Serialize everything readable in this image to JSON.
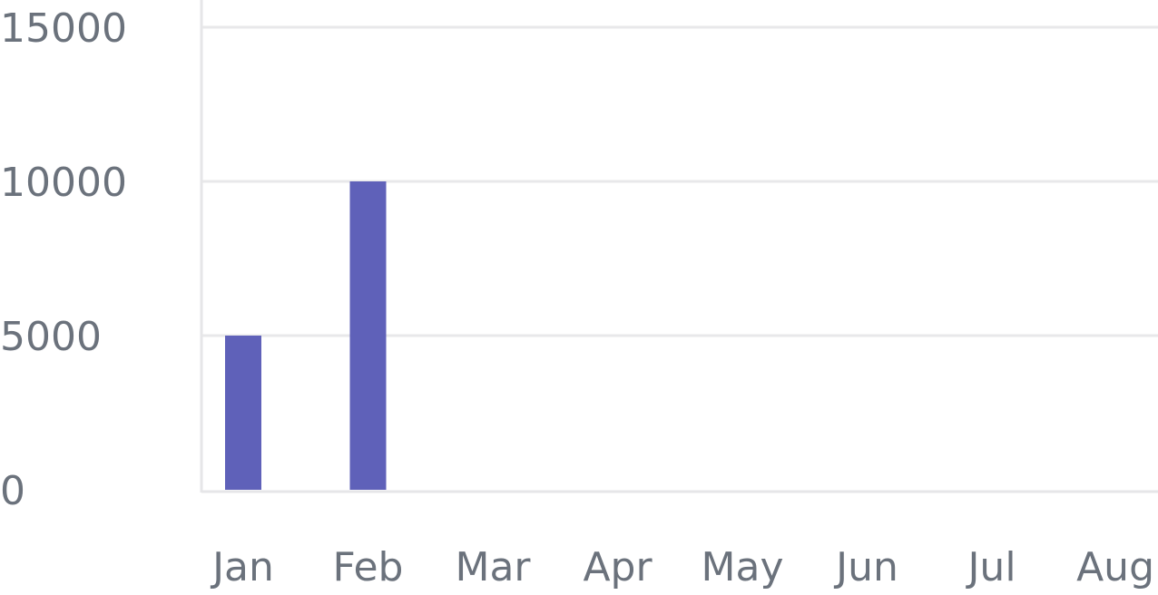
{
  "chart_data": {
    "type": "bar",
    "categories": [
      "Jan",
      "Feb",
      "Mar",
      "Apr",
      "May",
      "Jun",
      "Jul",
      "Aug"
    ],
    "values": [
      5000,
      10000,
      0,
      0,
      0,
      0,
      0,
      0
    ],
    "yticks": [
      0,
      5000,
      10000,
      15000
    ],
    "ylim": [
      0,
      15000
    ],
    "title": "",
    "xlabel": "",
    "ylabel": "",
    "grid": true,
    "colors": {
      "bar": "#5f61b9",
      "grid": "#e8e8ea",
      "axis": "#e6e6e8",
      "tick_text": "#6b727c"
    }
  }
}
